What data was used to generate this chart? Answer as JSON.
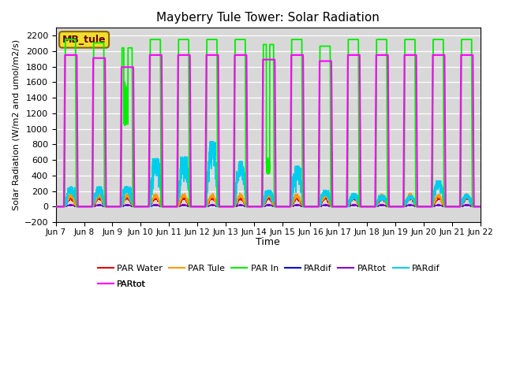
{
  "title": "Mayberry Tule Tower: Solar Radiation",
  "ylabel": "Solar Radiation (W/m2 and umol/m2/s)",
  "xlabel": "Time",
  "ylim": [
    -200,
    2300
  ],
  "yticks": [
    -200,
    0,
    200,
    400,
    600,
    800,
    1000,
    1200,
    1400,
    1600,
    1800,
    2000,
    2200
  ],
  "bg_color": "#d8d8d8",
  "legend_box_text": "MB_tule",
  "colors": {
    "PAR Water": "#dd0000",
    "PAR Tule": "#ff9900",
    "PAR In": "#00ee00",
    "PARdif_blue": "#0000cc",
    "PARtot_purple": "#8800cc",
    "PARdif_cyan": "#00ccee",
    "PARtot_mag": "#ff00ff"
  },
  "xtick_labels": [
    "Jun 7",
    "Jun 8",
    "Jun 9",
    "Jun 10",
    "Jun 11",
    "Jun 12",
    "Jun 13",
    "Jun 14",
    "Jun 15",
    "Jun 16",
    "Jun 17",
    "Jun 18",
    "Jun 19",
    "Jun 20",
    "Jun 21",
    "Jun 22"
  ],
  "n_days": 15,
  "ppd": 288,
  "peak_green": 2150,
  "peak_magenta": 1950,
  "peak_red": 110,
  "peak_orange": 140
}
